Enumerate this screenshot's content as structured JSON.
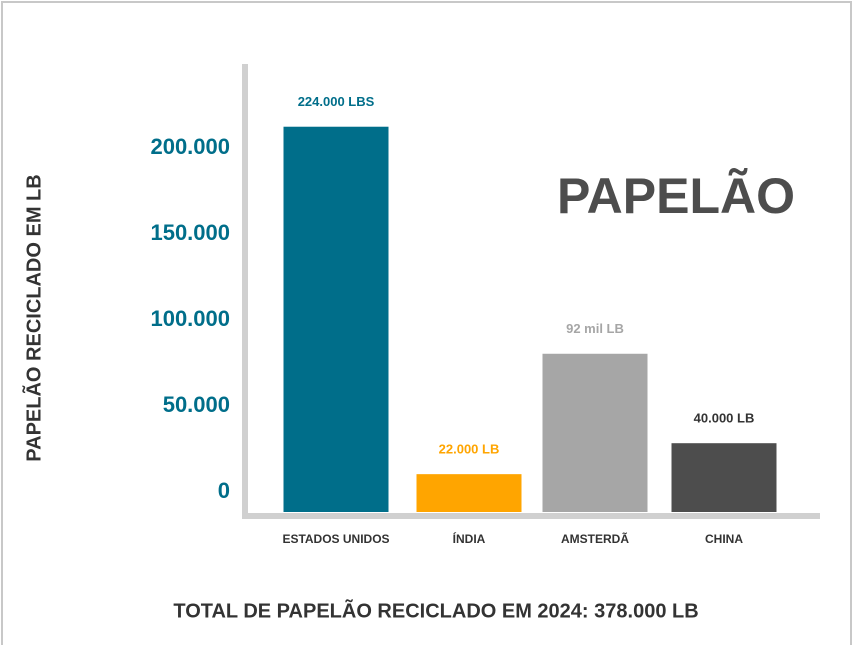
{
  "chart_data": {
    "type": "bar",
    "title": "PAPELÃO",
    "y_label": "PAPELÃO RECICLADO EM LB",
    "footer": "TOTAL DE PAPELÃO RECICLADO EM 2024: 378.000 LB",
    "categories": [
      "ESTADOS UNIDOS",
      "ÍNDIA",
      "AMSTERDÃ",
      "CHINA"
    ],
    "values": [
      224000,
      22000,
      92000,
      40000
    ],
    "value_labels": [
      "224.000 LBS",
      "22.000 LB",
      "92 mil LB",
      "40.000 LB"
    ],
    "colors": [
      "#006e8a",
      "#ffa500",
      "#a6a6a6",
      "#4d4d4d"
    ],
    "label_colors": [
      "#006e8a",
      "#ffa500",
      "#a6a6a6",
      "#333333"
    ],
    "ylim": [
      0,
      250000
    ],
    "yticks": [
      0,
      {
        "value": 50000,
        "label": "50.000"
      },
      {
        "value": 100000,
        "label": "100.000"
      },
      {
        "value": 150000,
        "label": "150.000"
      },
      {
        "value": 200000,
        "label": "200.000"
      }
    ],
    "grid": false
  }
}
